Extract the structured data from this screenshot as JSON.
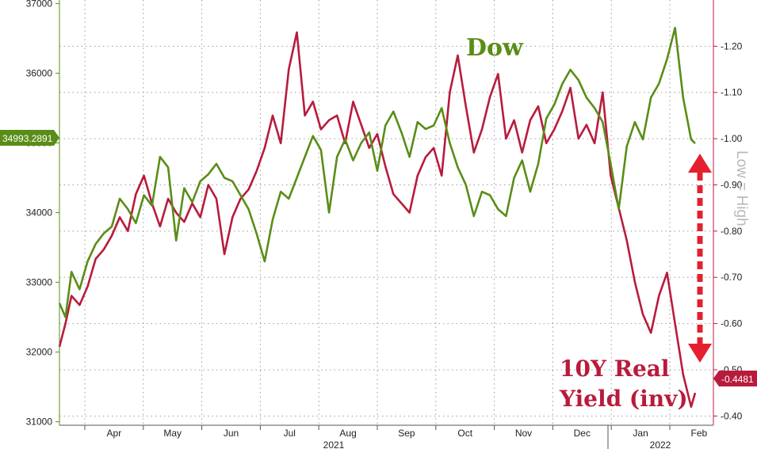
{
  "chart_data": {
    "type": "line",
    "x_labels": {
      "months": [
        "Apr",
        "May",
        "Jun",
        "Jul",
        "Aug",
        "Sep",
        "Oct",
        "Nov",
        "Dec",
        "Jan",
        "Feb"
      ],
      "years": [
        "2021",
        "2022"
      ]
    },
    "left_axis": {
      "ticks": [
        "31000",
        "32000",
        "33000",
        "34000",
        "35000",
        "36000",
        "37000"
      ],
      "ylim": [
        30950,
        37050
      ]
    },
    "right_axis": {
      "label": "Low = High",
      "inverted": true,
      "ticks": [
        "-0.40",
        "-0.50",
        "-0.60",
        "-0.70",
        "-0.80",
        "-0.90",
        "-1.00",
        "-1.10",
        "-1.20"
      ],
      "ylim": [
        -0.38,
        -1.3
      ]
    },
    "series": [
      {
        "name": "Dow",
        "axis": "left",
        "color": "#5a8d17",
        "last_value_label": "34993.2891",
        "x": [
          0,
          3,
          6,
          10,
          14,
          18,
          22,
          26,
          30,
          34,
          38,
          42,
          46,
          50,
          54,
          58,
          62,
          66,
          70,
          74,
          78,
          82,
          86,
          90,
          94,
          98,
          102,
          106,
          110,
          114,
          118,
          122,
          126,
          130,
          134,
          138,
          142,
          146,
          150,
          154,
          158,
          162,
          166,
          170,
          174,
          178,
          182,
          186,
          190,
          194,
          198,
          202,
          206,
          210,
          214,
          218,
          222,
          226,
          230,
          234,
          238,
          242,
          246,
          250,
          254,
          258,
          262,
          266,
          270,
          274,
          278,
          282,
          286,
          290,
          294,
          298,
          302,
          306,
          310,
          314,
          316
        ],
        "values": [
          32700,
          32500,
          33150,
          32900,
          33300,
          33550,
          33700,
          33800,
          34200,
          34050,
          33850,
          34250,
          34100,
          34800,
          34650,
          33600,
          34350,
          34150,
          34450,
          34550,
          34700,
          34500,
          34450,
          34250,
          34050,
          33700,
          33300,
          33900,
          34300,
          34200,
          34500,
          34800,
          35100,
          34900,
          34000,
          34800,
          35050,
          34750,
          35000,
          35150,
          34600,
          35250,
          35450,
          35150,
          34800,
          35300,
          35200,
          35250,
          35500,
          35000,
          34650,
          34400,
          33950,
          34300,
          34250,
          34050,
          33950,
          34500,
          34750,
          34300,
          34700,
          35350,
          35550,
          35850,
          36050,
          35900,
          35650,
          35500,
          35300,
          34700,
          34050,
          34950,
          35300,
          35050,
          35650,
          35850,
          36200,
          36650,
          35650,
          35050,
          34993
        ]
      },
      {
        "name": "10Y Real Yield (inv)",
        "axis": "right",
        "color": "#b81b3c",
        "last_value_label": "-0.4481",
        "x": [
          0,
          3,
          6,
          10,
          14,
          18,
          22,
          26,
          30,
          34,
          38,
          42,
          46,
          50,
          54,
          58,
          62,
          66,
          70,
          74,
          78,
          82,
          86,
          90,
          94,
          98,
          102,
          106,
          110,
          114,
          118,
          122,
          126,
          130,
          134,
          138,
          142,
          146,
          150,
          154,
          158,
          162,
          166,
          170,
          174,
          178,
          182,
          186,
          190,
          194,
          198,
          202,
          206,
          210,
          214,
          218,
          222,
          226,
          230,
          234,
          238,
          242,
          246,
          250,
          254,
          258,
          262,
          266,
          270,
          274,
          278,
          282,
          286,
          290,
          294,
          298,
          302,
          306,
          310,
          314,
          316
        ],
        "values": [
          -0.55,
          -0.6,
          -0.66,
          -0.64,
          -0.68,
          -0.74,
          -0.76,
          -0.79,
          -0.83,
          -0.8,
          -0.88,
          -0.92,
          -0.86,
          -0.81,
          -0.87,
          -0.84,
          -0.82,
          -0.86,
          -0.83,
          -0.9,
          -0.87,
          -0.75,
          -0.83,
          -0.87,
          -0.89,
          -0.93,
          -0.98,
          -1.05,
          -0.99,
          -1.15,
          -1.23,
          -1.05,
          -1.08,
          -1.02,
          -1.04,
          -1.05,
          -0.99,
          -1.08,
          -1.03,
          -0.98,
          -1.01,
          -0.94,
          -0.88,
          -0.86,
          -0.84,
          -0.92,
          -0.96,
          -0.98,
          -0.92,
          -1.1,
          -1.18,
          -1.07,
          -0.97,
          -1.02,
          -1.09,
          -1.14,
          -1.0,
          -1.04,
          -0.97,
          -1.04,
          -1.07,
          -0.99,
          -1.02,
          -1.06,
          -1.11,
          -1.0,
          -1.03,
          -0.99,
          -1.1,
          -0.92,
          -0.85,
          -0.78,
          -0.69,
          -0.62,
          -0.58,
          -0.66,
          -0.71,
          -0.6,
          -0.49,
          -0.42,
          -0.45
        ]
      }
    ],
    "annotations": [
      {
        "text": "Dow",
        "color": "#5a8d17"
      },
      {
        "text_lines": [
          "10Y Real",
          "Yield (inv)"
        ],
        "color": "#b81b3c"
      },
      {
        "type": "double-arrow",
        "style": "dashed",
        "color": "#e4202f"
      }
    ],
    "grid": true
  }
}
